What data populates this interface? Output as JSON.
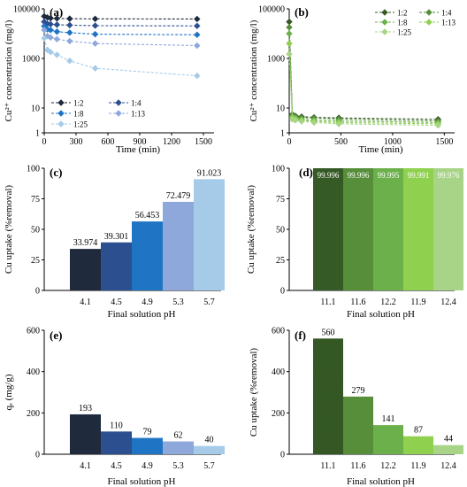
{
  "colors": {
    "axis": "#000000",
    "blue_series": [
      "#1f2a3d",
      "#2c4f8f",
      "#1f74c4",
      "#8fa8dc",
      "#a6cbe9"
    ],
    "green_series": [
      "#365a25",
      "#568e3a",
      "#6bb04a",
      "#8fd04f",
      "#a7d487"
    ]
  },
  "chart_data": [
    {
      "id": "a",
      "panel_label": "(a)",
      "type": "line",
      "xlabel": "Time (min)",
      "ylabel": "Cu²⁺ concentration (mg/l)",
      "log_y": true,
      "ylim": [
        1,
        100000
      ],
      "xlim": [
        0,
        1600
      ],
      "yticks": [
        1,
        10,
        1000,
        100000
      ],
      "ytick_labels": [
        "1",
        "10",
        "1000",
        "100000"
      ],
      "xticks": [
        0,
        300,
        600,
        900,
        1200,
        1500
      ],
      "xtick_labels": [
        "0",
        "300",
        "600",
        "900",
        "1200",
        "1500"
      ],
      "legend_position": "bottom-left",
      "x": [
        0,
        30,
        60,
        120,
        240,
        480,
        1440
      ],
      "series": [
        {
          "name": "1:2",
          "color": "#1f2a3d",
          "marker": "diamond",
          "values": [
            50000,
            45000,
            42000,
            41000,
            40000,
            39500,
            39000
          ]
        },
        {
          "name": "1:4",
          "color": "#2c4f8f",
          "marker": "diamond",
          "values": [
            30000,
            25000,
            24000,
            23000,
            22000,
            21000,
            20500
          ]
        },
        {
          "name": "1:8",
          "color": "#1f74c4",
          "marker": "diamond",
          "values": [
            20000,
            15000,
            14000,
            12000,
            11000,
            9500,
            9000
          ]
        },
        {
          "name": "1:13",
          "color": "#8fa8dc",
          "marker": "diamond",
          "values": [
            14000,
            8000,
            7000,
            6000,
            5000,
            4000,
            3300
          ]
        },
        {
          "name": "1:25",
          "color": "#a6cbe9",
          "marker": "diamond",
          "values": [
            6500,
            2200,
            1800,
            1400,
            800,
            400,
            200
          ]
        }
      ]
    },
    {
      "id": "b",
      "panel_label": "(b)",
      "type": "line",
      "xlabel": "Time (min)",
      "ylabel": "Cu²⁺ concentration (mg/l)",
      "log_y": true,
      "ylim": [
        1,
        100000
      ],
      "xlim": [
        0,
        1600
      ],
      "yticks": [
        1,
        10,
        1000,
        100000
      ],
      "ytick_labels": [
        "1",
        "10",
        "1000",
        "100000"
      ],
      "xticks": [
        0,
        500,
        1000,
        1500
      ],
      "xtick_labels": [
        "0",
        "500",
        "1000",
        "1500"
      ],
      "legend_position": "top-right",
      "x": [
        0,
        30,
        60,
        120,
        240,
        480,
        1440
      ],
      "series": [
        {
          "name": "1:2",
          "color": "#365a25",
          "marker": "diamond",
          "values": [
            30000,
            5.5,
            4.8,
            4.5,
            4.2,
            4.0,
            3.5
          ]
        },
        {
          "name": "1:4",
          "color": "#568e3a",
          "marker": "diamond",
          "values": [
            18000,
            5.0,
            4.5,
            4.1,
            3.9,
            3.6,
            3.0
          ]
        },
        {
          "name": "1:8",
          "color": "#6bb04a",
          "marker": "diamond",
          "values": [
            10000,
            4.5,
            4.0,
            3.5,
            3.2,
            3.0,
            2.6
          ]
        },
        {
          "name": "1:13",
          "color": "#8fd04f",
          "marker": "diamond",
          "values": [
            4000,
            4.0,
            3.6,
            3.2,
            2.9,
            2.6,
            2.3
          ]
        },
        {
          "name": "1:25",
          "color": "#a7d487",
          "marker": "diamond",
          "values": [
            1500,
            3.5,
            3.2,
            2.9,
            2.6,
            2.3,
            2.0
          ]
        }
      ]
    },
    {
      "id": "c",
      "panel_label": "(c)",
      "type": "bar",
      "xlabel": "Final solution pH",
      "ylabel": "Cu uptake (%removal)",
      "ylim": [
        0,
        100
      ],
      "yticks": [
        0,
        25,
        50,
        75,
        100
      ],
      "ytick_labels": [
        "0",
        "25",
        "50",
        "75",
        "100"
      ],
      "categories": [
        "4.1",
        "4.5",
        "4.9",
        "5.3",
        "5.7"
      ],
      "values": [
        33.974,
        39.301,
        56.453,
        72.479,
        91.023
      ],
      "data_labels": [
        "33.974",
        "39.301",
        "56.453",
        "72.479",
        "91.023"
      ],
      "label_position": "above"
    },
    {
      "id": "d",
      "panel_label": "(d)",
      "type": "bar",
      "xlabel": "Final solution pH",
      "ylabel": "Cu uptake (%removal)",
      "ylim": [
        0,
        100
      ],
      "yticks": [
        0,
        25,
        50,
        75,
        100
      ],
      "ytick_labels": [
        "0",
        "25",
        "50",
        "75",
        "100"
      ],
      "categories": [
        "11.1",
        "11.6",
        "12.2",
        "11.9",
        "12.4"
      ],
      "values": [
        99.996,
        99.996,
        99.995,
        99.991,
        99.976
      ],
      "data_labels": [
        "99.996",
        "99.996",
        "99.995",
        "99.991",
        "99.976"
      ],
      "label_position": "inside"
    },
    {
      "id": "e",
      "panel_label": "(e)",
      "type": "bar",
      "xlabel": "Final solution pH",
      "ylabel": "qₑ (mg/g)",
      "ylim": [
        0,
        600
      ],
      "yticks": [
        0,
        200,
        400,
        600
      ],
      "ytick_labels": [
        "0",
        "200",
        "400",
        "600"
      ],
      "categories": [
        "4.1",
        "4.5",
        "4.9",
        "5.3",
        "5.7"
      ],
      "values": [
        193,
        110,
        79,
        62,
        40
      ],
      "data_labels": [
        "193",
        "110",
        "79",
        "62",
        "40"
      ],
      "label_position": "above"
    },
    {
      "id": "f",
      "panel_label": "(f)",
      "type": "bar",
      "xlabel": "Final solution pH",
      "ylabel": "Cu uptake (%removal)",
      "ylim": [
        0,
        600
      ],
      "yticks": [
        0,
        200,
        400,
        600
      ],
      "ytick_labels": [
        "0",
        "200",
        "400",
        "600"
      ],
      "categories": [
        "11.1",
        "11.6",
        "12.2",
        "11.9",
        "12.4"
      ],
      "values": [
        560,
        279,
        141,
        87,
        44
      ],
      "data_labels": [
        "560",
        "279",
        "141",
        "87",
        "44"
      ],
      "label_position": "above"
    }
  ]
}
